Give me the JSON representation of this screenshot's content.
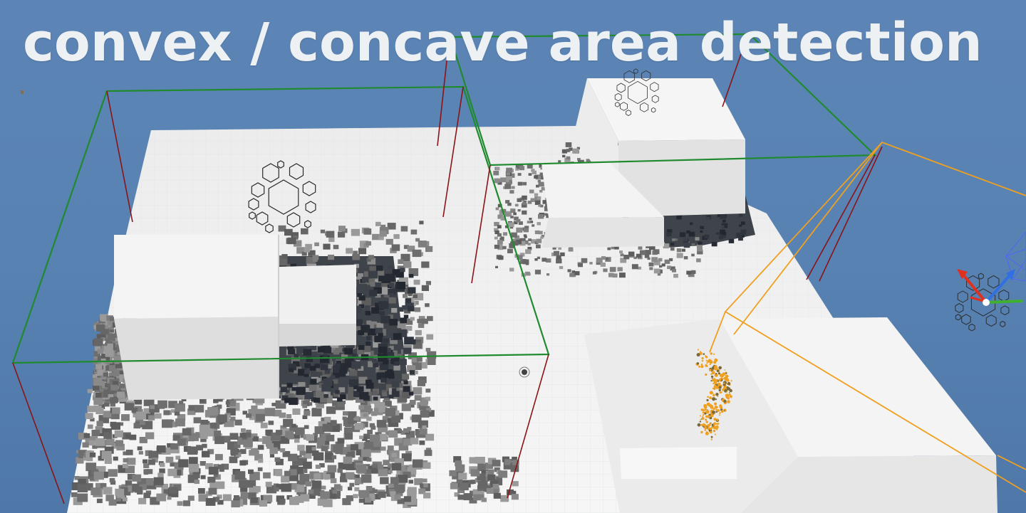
{
  "scene": {
    "title": "convex / concave area detection",
    "colors": {
      "sky": "#5a84b4",
      "floor": "#f2f2f2",
      "box_top": "#f4f4f4",
      "box_side": "#dcdcdc",
      "debris": "#6e6e6e",
      "shadow": "#30343c",
      "volume_green": "#1f8a2e",
      "volume_orange": "#f0a020",
      "pole_red": "#8a1418",
      "particles": "#f0a020",
      "hex": "#2b2b2b",
      "gizmo_x": "#e03020",
      "gizmo_y": "#40b030",
      "gizmo_z": "#3070e0",
      "gizmo_mesh": "#5560ff"
    },
    "icons": [
      "hex-cluster-icon",
      "transform-gizmo-icon",
      "light-source-icon"
    ]
  }
}
